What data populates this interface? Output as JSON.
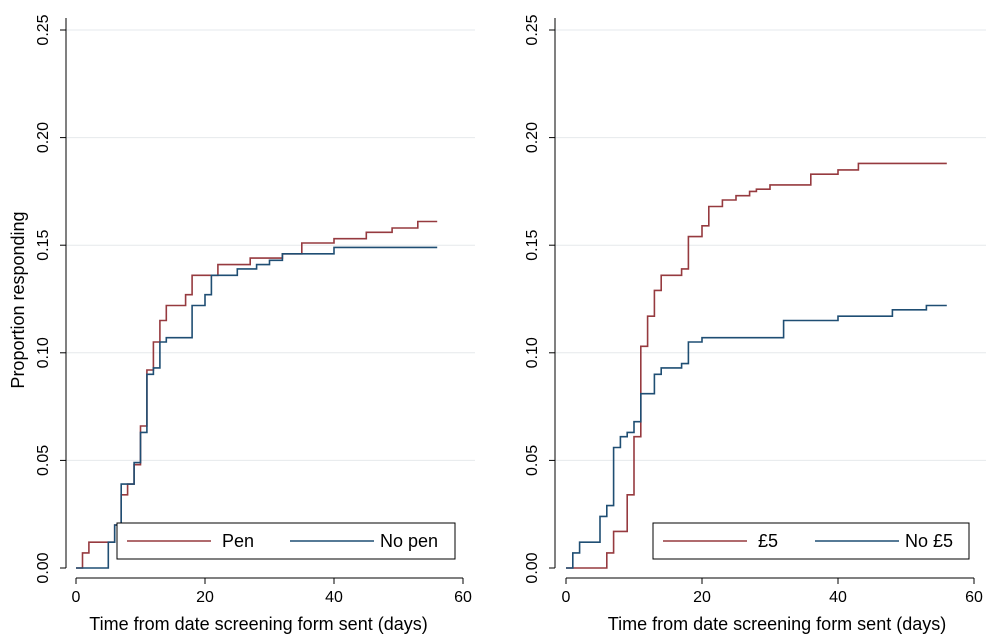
{
  "chart_data": [
    {
      "type": "line",
      "step": true,
      "panel": "left",
      "xlabel": "Time from date screening form sent (days)",
      "ylabel": "Proportion responding",
      "xlim": [
        0,
        60
      ],
      "ylim": [
        0,
        0.25
      ],
      "xticks": [
        "0",
        "20",
        "40",
        "60"
      ],
      "yticks": [
        "0.00",
        "0.05",
        "0.10",
        "0.15",
        "0.20",
        "0.25"
      ],
      "grid": "horizontal",
      "legend_position": "bottom-right",
      "series": [
        {
          "name": "Pen",
          "color": "#963a3f",
          "x": [
            0,
            1,
            2,
            5,
            6,
            7,
            8,
            9,
            10,
            11,
            12,
            13,
            14,
            15,
            16,
            17,
            18,
            22,
            27,
            32,
            35,
            40,
            45,
            49,
            53,
            56
          ],
          "y": [
            0.0,
            0.007,
            0.012,
            0.012,
            0.02,
            0.034,
            0.039,
            0.048,
            0.066,
            0.092,
            0.105,
            0.115,
            0.122,
            0.122,
            0.122,
            0.127,
            0.136,
            0.141,
            0.144,
            0.146,
            0.151,
            0.153,
            0.156,
            0.158,
            0.161,
            0.161
          ]
        },
        {
          "name": "No pen",
          "color": "#1f4e73",
          "x": [
            0,
            5,
            6,
            7,
            8,
            9,
            10,
            11,
            12,
            13,
            14,
            17,
            18,
            20,
            21,
            25,
            28,
            30,
            32,
            40,
            56
          ],
          "y": [
            0.0,
            0.012,
            0.02,
            0.039,
            0.039,
            0.049,
            0.063,
            0.09,
            0.093,
            0.105,
            0.107,
            0.107,
            0.122,
            0.127,
            0.136,
            0.139,
            0.141,
            0.143,
            0.146,
            0.149,
            0.149
          ]
        }
      ]
    },
    {
      "type": "line",
      "step": true,
      "panel": "right",
      "xlabel": "Time from date screening form sent (days)",
      "ylabel": "",
      "xlim": [
        0,
        60
      ],
      "ylim": [
        0,
        0.25
      ],
      "xticks": [
        "0",
        "20",
        "40",
        "60"
      ],
      "yticks": [
        "0.00",
        "0.05",
        "0.10",
        "0.15",
        "0.20",
        "0.25"
      ],
      "grid": "horizontal",
      "legend_position": "bottom-right",
      "series": [
        {
          "name": "£5",
          "color": "#963a3f",
          "x": [
            0,
            6,
            7,
            9,
            10,
            11,
            12,
            13,
            14,
            17,
            18,
            20,
            21,
            23,
            25,
            27,
            28,
            30,
            32,
            36,
            40,
            43,
            56
          ],
          "y": [
            0.0,
            0.007,
            0.017,
            0.034,
            0.061,
            0.103,
            0.117,
            0.129,
            0.136,
            0.139,
            0.154,
            0.159,
            0.168,
            0.171,
            0.173,
            0.175,
            0.176,
            0.178,
            0.178,
            0.183,
            0.185,
            0.188,
            0.188
          ]
        },
        {
          "name": "No £5",
          "color": "#1f4e73",
          "x": [
            0,
            1,
            2,
            5,
            6,
            7,
            8,
            9,
            10,
            11,
            13,
            14,
            17,
            18,
            20,
            22,
            32,
            40,
            48,
            53,
            56
          ],
          "y": [
            0.0,
            0.007,
            0.012,
            0.024,
            0.029,
            0.056,
            0.061,
            0.063,
            0.068,
            0.081,
            0.09,
            0.093,
            0.095,
            0.105,
            0.107,
            0.107,
            0.115,
            0.117,
            0.12,
            0.122,
            0.122
          ]
        }
      ]
    }
  ]
}
